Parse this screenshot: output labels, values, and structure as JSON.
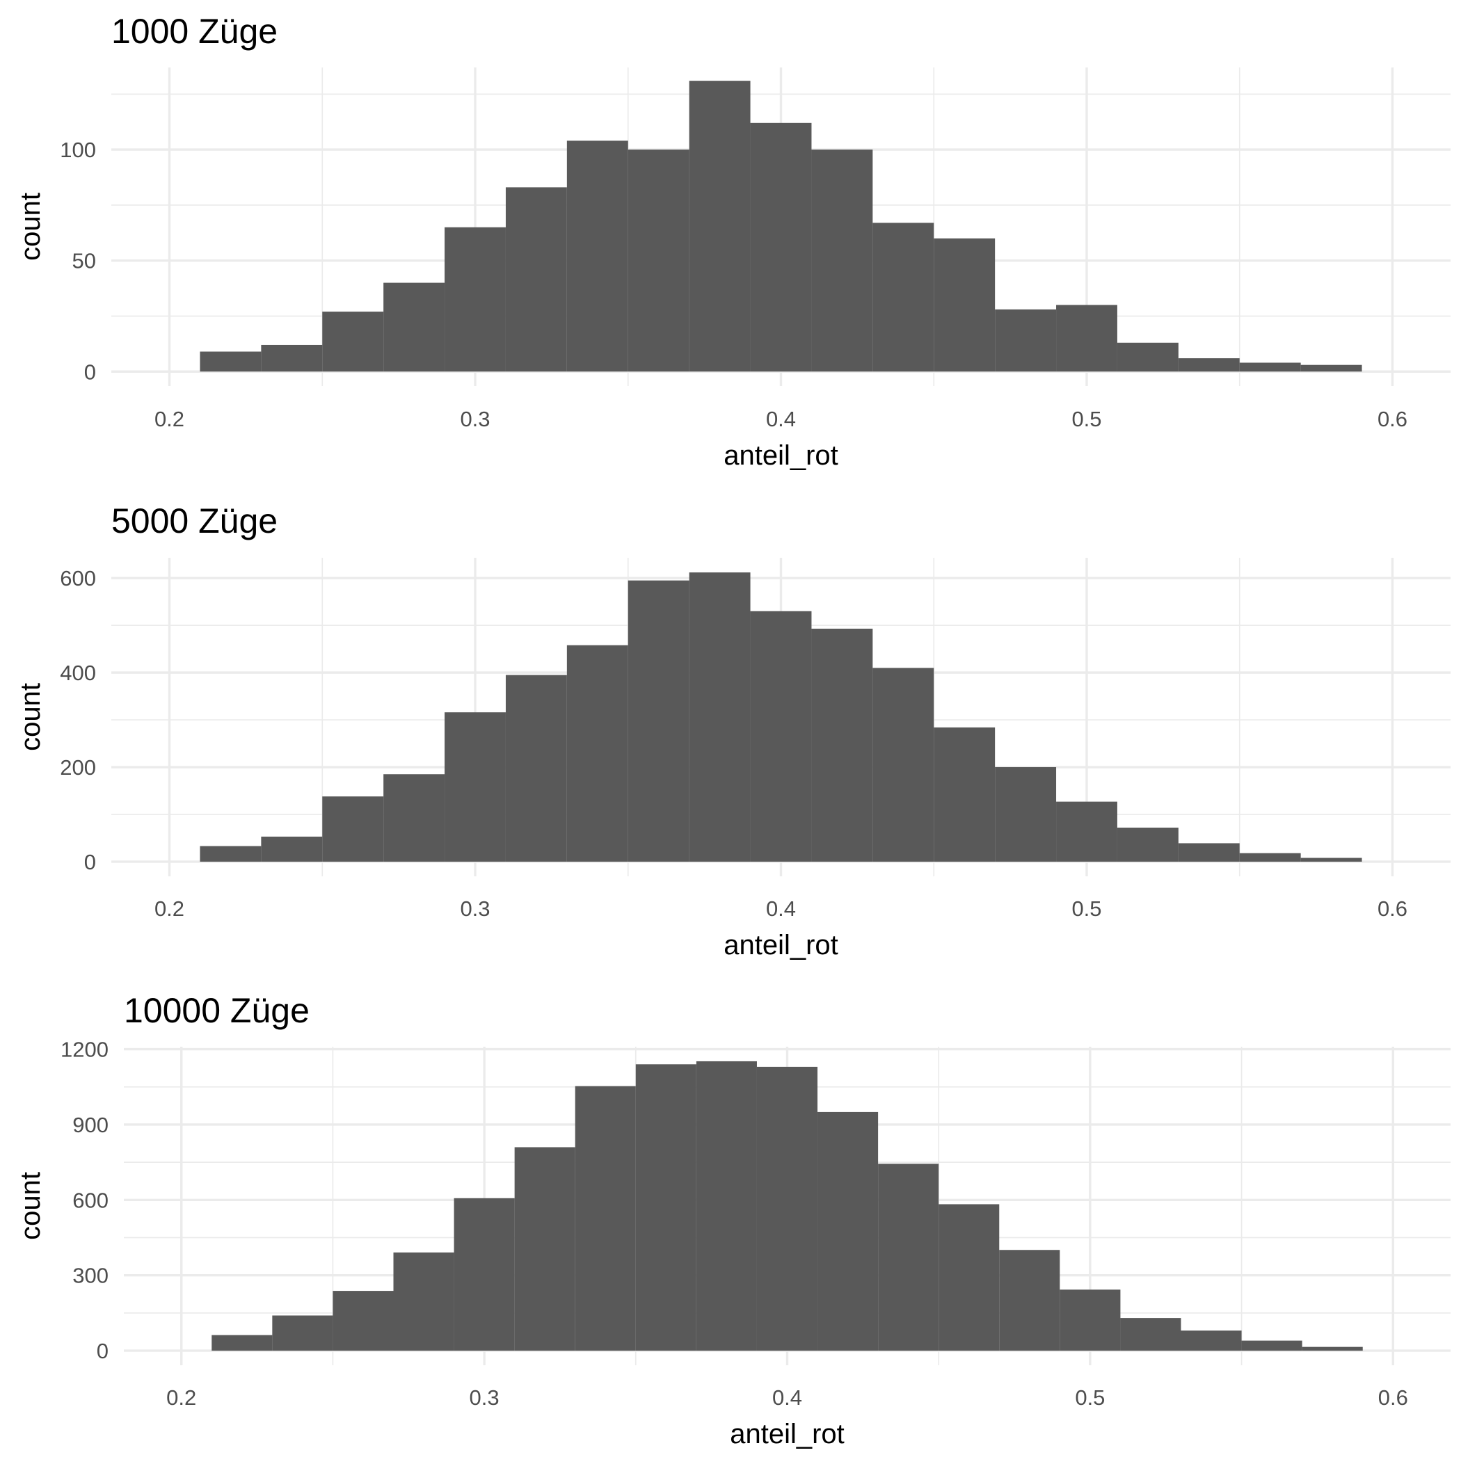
{
  "chart_data": [
    {
      "type": "bar",
      "title": "1000 Züge",
      "xlabel": "anteil_rot",
      "ylabel": "count",
      "xlim": [
        0.181,
        0.619
      ],
      "ylim": [
        -6.5,
        137
      ],
      "xticks": [
        0.2,
        0.3,
        0.4,
        0.5,
        0.6
      ],
      "xtick_labels": [
        "0.2",
        "0.3",
        "0.4",
        "0.5",
        "0.6"
      ],
      "yticks": [
        0,
        50,
        100
      ],
      "ytick_labels": [
        "0",
        "50",
        "100"
      ],
      "grid": true,
      "bin_edges": [
        0.21,
        0.23,
        0.25,
        0.27,
        0.29,
        0.31,
        0.33,
        0.35,
        0.37,
        0.39,
        0.41,
        0.43,
        0.45,
        0.47,
        0.49,
        0.51,
        0.53,
        0.55,
        0.57,
        0.59
      ],
      "values": [
        9,
        12,
        27,
        40,
        65,
        83,
        104,
        100,
        131,
        112,
        100,
        67,
        60,
        28,
        30,
        13,
        6,
        4,
        3
      ]
    },
    {
      "type": "bar",
      "title": "5000 Züge",
      "xlabel": "anteil_rot",
      "ylabel": "count",
      "xlim": [
        0.181,
        0.619
      ],
      "ylim": [
        -31,
        643
      ],
      "xticks": [
        0.2,
        0.3,
        0.4,
        0.5,
        0.6
      ],
      "xtick_labels": [
        "0.2",
        "0.3",
        "0.4",
        "0.5",
        "0.6"
      ],
      "yticks": [
        0,
        200,
        400,
        600
      ],
      "ytick_labels": [
        "0",
        "200",
        "400",
        "600"
      ],
      "grid": true,
      "bin_edges": [
        0.21,
        0.23,
        0.25,
        0.27,
        0.29,
        0.31,
        0.33,
        0.35,
        0.37,
        0.39,
        0.41,
        0.43,
        0.45,
        0.47,
        0.49,
        0.51,
        0.53,
        0.55,
        0.57,
        0.59
      ],
      "values": [
        33,
        53,
        138,
        185,
        316,
        395,
        458,
        595,
        612,
        530,
        493,
        410,
        284,
        200,
        127,
        72,
        39,
        18,
        8
      ]
    },
    {
      "type": "bar",
      "title": "10000 Züge",
      "xlabel": "anteil_rot",
      "ylabel": "count",
      "xlim": [
        0.181,
        0.619
      ],
      "ylim": [
        -58,
        1210
      ],
      "xticks": [
        0.2,
        0.3,
        0.4,
        0.5,
        0.6
      ],
      "xtick_labels": [
        "0.2",
        "0.3",
        "0.4",
        "0.5",
        "0.6"
      ],
      "yticks": [
        0,
        300,
        600,
        900,
        1200
      ],
      "ytick_labels": [
        "0",
        "300",
        "600",
        "900",
        "1200"
      ],
      "grid": true,
      "bin_edges": [
        0.21,
        0.23,
        0.25,
        0.27,
        0.29,
        0.31,
        0.33,
        0.35,
        0.37,
        0.39,
        0.41,
        0.43,
        0.45,
        0.47,
        0.49,
        0.51,
        0.53,
        0.55,
        0.57,
        0.59
      ],
      "values": [
        62,
        140,
        238,
        391,
        607,
        810,
        1053,
        1140,
        1152,
        1130,
        950,
        744,
        583,
        401,
        243,
        130,
        80,
        40,
        15
      ]
    }
  ],
  "colors": {
    "bar_fill": "#595959",
    "grid": "#ebebeb",
    "tick_text": "#4d4d4d",
    "text": "#000000",
    "background": "#ffffff"
  }
}
